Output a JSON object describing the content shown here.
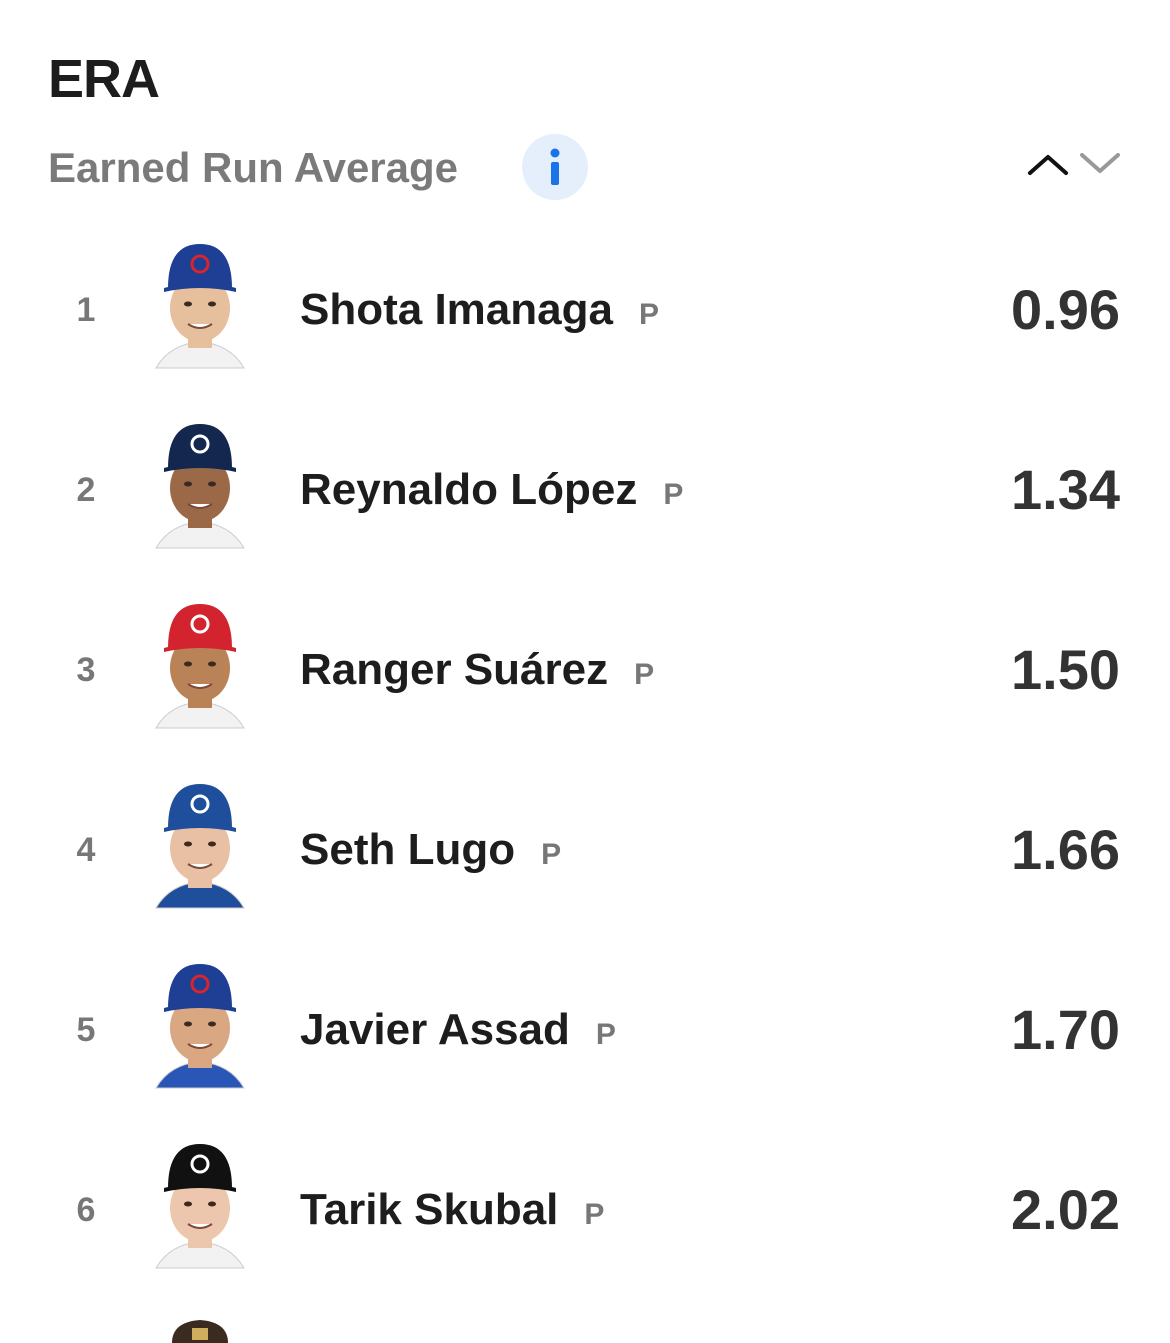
{
  "header": {
    "title": "ERA",
    "subtitle": "Earned Run Average"
  },
  "rows": [
    {
      "rank": 1,
      "name": "Shota Imanaga",
      "position": "P",
      "value": "0.96"
    },
    {
      "rank": 2,
      "name": "Reynaldo López",
      "position": "P",
      "value": "1.34"
    },
    {
      "rank": 3,
      "name": "Ranger Suárez",
      "position": "P",
      "value": "1.50"
    },
    {
      "rank": 4,
      "name": "Seth Lugo",
      "position": "P",
      "value": "1.66"
    },
    {
      "rank": 5,
      "name": "Javier Assad",
      "position": "P",
      "value": "1.70"
    },
    {
      "rank": 6,
      "name": "Tarik Skubal",
      "position": "P",
      "value": "2.02"
    }
  ]
}
